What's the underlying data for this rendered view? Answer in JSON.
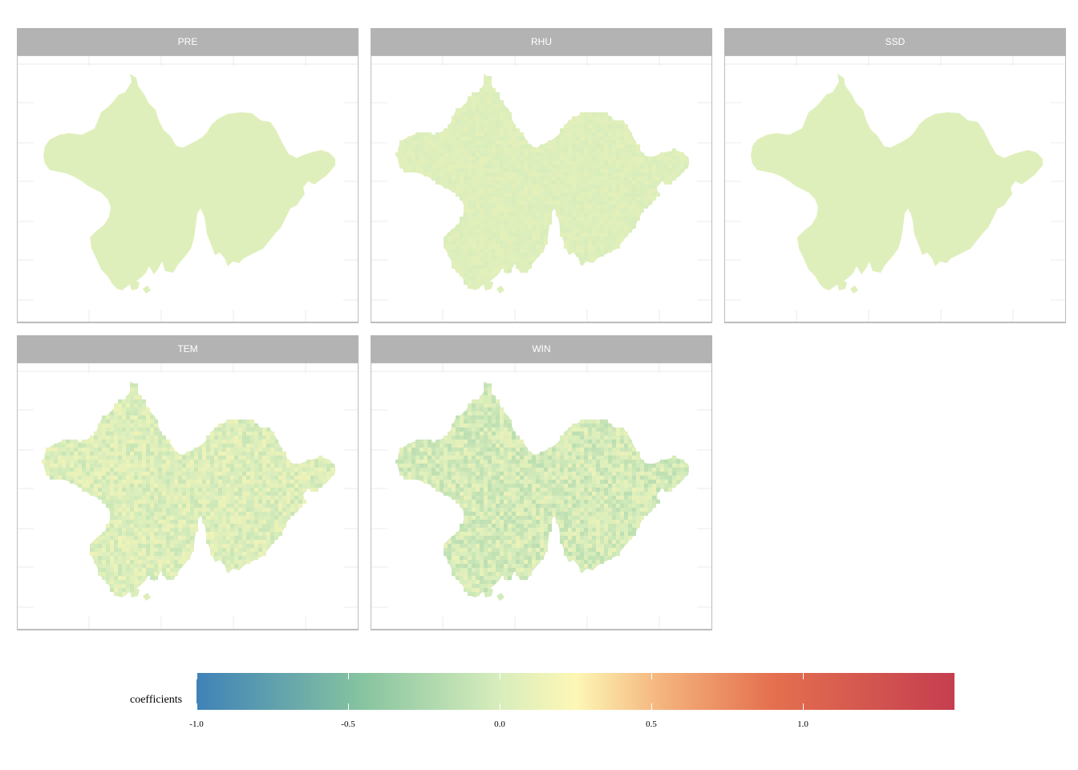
{
  "chart_data": {
    "type": "heatmap",
    "facets": [
      {
        "name": "PRE",
        "pattern": "uniform",
        "mean_coef": 0.05,
        "spread": 0.0
      },
      {
        "name": "RHU",
        "pattern": "textured",
        "mean_coef": 0.04,
        "spread": 0.04
      },
      {
        "name": "SSD",
        "pattern": "uniform",
        "mean_coef": 0.05,
        "spread": 0.0
      },
      {
        "name": "TEM",
        "pattern": "textured",
        "mean_coef": 0.03,
        "spread": 0.12
      },
      {
        "name": "WIN",
        "pattern": "textured",
        "mean_coef": -0.02,
        "spread": 0.14
      }
    ],
    "colorbar": {
      "title": "coefficients",
      "range": [
        -1.0,
        1.5
      ],
      "ticks": [
        -1.0,
        -0.5,
        0.0,
        0.5,
        1.0
      ],
      "tick_labels": [
        "-1.0",
        "-0.5",
        "0.0",
        "0.5",
        "1.0"
      ],
      "palette": [
        "#3f82b8",
        "#87c4a0",
        "#d8edbc",
        "#fdf7b6",
        "#f4b07a",
        "#e4704f",
        "#c53e4f"
      ],
      "palette_stops": [
        -1.0,
        -0.45,
        0.0,
        0.25,
        0.55,
        0.9,
        1.5
      ]
    },
    "grid": true,
    "legend_position": "bottom"
  }
}
